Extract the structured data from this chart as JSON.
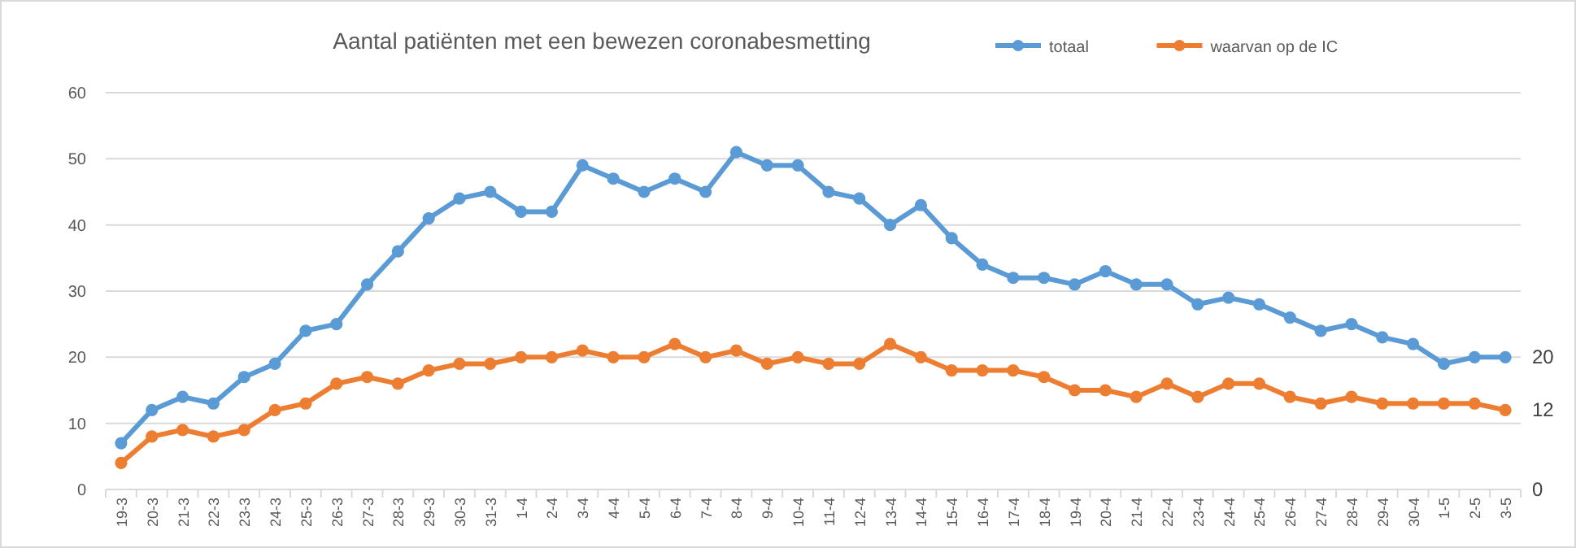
{
  "chart_data": {
    "type": "line",
    "title": "Aantal patiënten met een bewezen coronabesmetting",
    "categories": [
      "19-3",
      "20-3",
      "21-3",
      "22-3",
      "23-3",
      "24-3",
      "25-3",
      "26-3",
      "27-3",
      "28-3",
      "29-3",
      "30-3",
      "31-3",
      "1-4",
      "2-4",
      "3-4",
      "4-4",
      "5-4",
      "6-4",
      "7-4",
      "8-4",
      "9-4",
      "10-4",
      "11-4",
      "12-4",
      "13-4",
      "14-4",
      "15-4",
      "16-4",
      "17-4",
      "18-4",
      "19-4",
      "20-4",
      "21-4",
      "22-4",
      "23-4",
      "24-4",
      "25-4",
      "26-4",
      "27-4",
      "28-4",
      "29-4",
      "30-4",
      "1-5",
      "2-5",
      "3-5"
    ],
    "series": [
      {
        "name": "totaal",
        "color": "#5b9bd5",
        "values": [
          7,
          12,
          14,
          13,
          17,
          19,
          24,
          25,
          31,
          36,
          41,
          44,
          45,
          42,
          42,
          49,
          47,
          45,
          47,
          45,
          51,
          49,
          49,
          45,
          44,
          40,
          43,
          38,
          34,
          32,
          32,
          31,
          33,
          31,
          31,
          28,
          29,
          28,
          26,
          24,
          25,
          23,
          22,
          19,
          20,
          20
        ]
      },
      {
        "name": "waarvan op de IC",
        "color": "#ed7d31",
        "values": [
          4,
          8,
          9,
          8,
          9,
          12,
          13,
          16,
          17,
          16,
          18,
          19,
          19,
          20,
          20,
          21,
          20,
          20,
          22,
          20,
          21,
          19,
          20,
          19,
          19,
          22,
          20,
          18,
          18,
          18,
          17,
          15,
          15,
          14,
          16,
          14,
          16,
          16,
          14,
          13,
          14,
          13,
          13,
          13,
          13,
          12
        ]
      }
    ],
    "ylim": [
      0,
      60
    ],
    "yticks": [
      0,
      10,
      20,
      30,
      40,
      50,
      60
    ],
    "y2lim": [
      0,
      60
    ],
    "y2ticks": [
      0,
      12,
      20
    ],
    "grid": "y",
    "legend": "top right",
    "marker": "circle",
    "line_style": "solid"
  }
}
